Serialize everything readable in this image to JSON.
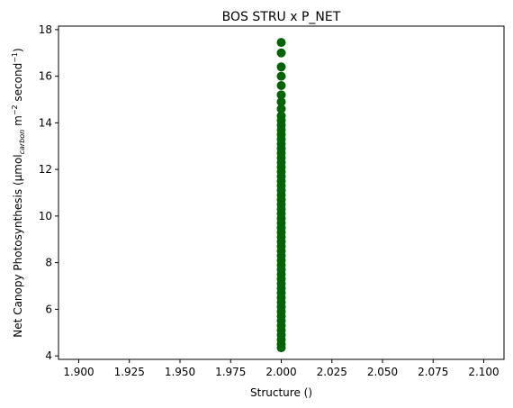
{
  "chart_data": {
    "type": "scatter",
    "title": "BOS STRU x P_NET",
    "xlabel": "Structure ()",
    "ylabel": {
      "prefix": "Net Canopy Photosynthesis (µmol",
      "subscript": "carbon",
      "mid1": " m",
      "sup1": "−2",
      "mid2": " second",
      "sup2": "−1",
      "suffix": ")"
    },
    "xlim": [
      1.89,
      2.11
    ],
    "ylim": [
      3.85,
      18.15
    ],
    "xticks": [
      "1.900",
      "1.925",
      "1.950",
      "1.975",
      "2.000",
      "2.025",
      "2.050",
      "2.075",
      "2.100"
    ],
    "yticks": [
      "4",
      "6",
      "8",
      "10",
      "12",
      "14",
      "16",
      "18"
    ],
    "point_color": "#006400",
    "series": [
      {
        "x": [
          2.0,
          2.0,
          2.0,
          2.0,
          2.0,
          2.0,
          2.0,
          2.0,
          2.0,
          2.0,
          2.0,
          2.0,
          2.0,
          2.0,
          2.0,
          2.0,
          2.0,
          2.0,
          2.0,
          2.0,
          2.0,
          2.0,
          2.0,
          2.0,
          2.0,
          2.0,
          2.0,
          2.0,
          2.0,
          2.0,
          2.0,
          2.0,
          2.0,
          2.0,
          2.0,
          2.0,
          2.0,
          2.0,
          2.0,
          2.0,
          2.0,
          2.0,
          2.0,
          2.0,
          2.0,
          2.0,
          2.0,
          2.0,
          2.0,
          2.0,
          2.0,
          2.0,
          2.0,
          2.0,
          2.0,
          2.0,
          2.0,
          2.0,
          2.0
        ],
        "y": [
          4.35,
          4.5,
          4.7,
          4.9,
          5.1,
          5.3,
          5.5,
          5.7,
          5.9,
          6.1,
          6.3,
          6.5,
          6.7,
          6.9,
          7.1,
          7.3,
          7.5,
          7.7,
          7.9,
          8.1,
          8.3,
          8.5,
          8.7,
          8.9,
          9.1,
          9.3,
          9.5,
          9.7,
          9.9,
          10.1,
          10.3,
          10.5,
          10.7,
          10.9,
          11.1,
          11.3,
          11.5,
          11.7,
          11.9,
          12.1,
          12.3,
          12.5,
          12.7,
          12.9,
          13.1,
          13.3,
          13.5,
          13.7,
          13.9,
          14.1,
          14.3,
          14.6,
          14.9,
          15.2,
          15.6,
          16.0,
          16.4,
          17.0,
          17.45
        ]
      }
    ]
  }
}
